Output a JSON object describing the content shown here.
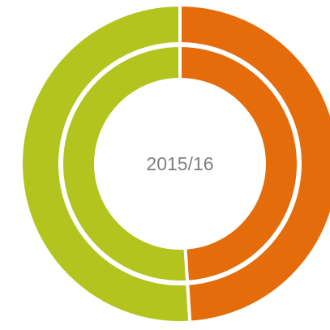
{
  "chart_data": {
    "type": "donut",
    "center_label": "2015/16",
    "colors": [
      "#e46c0a",
      "#b3c41f"
    ],
    "series": [
      {
        "values": [
          49,
          51
        ]
      },
      {
        "values": [
          49,
          51
        ]
      }
    ]
  }
}
